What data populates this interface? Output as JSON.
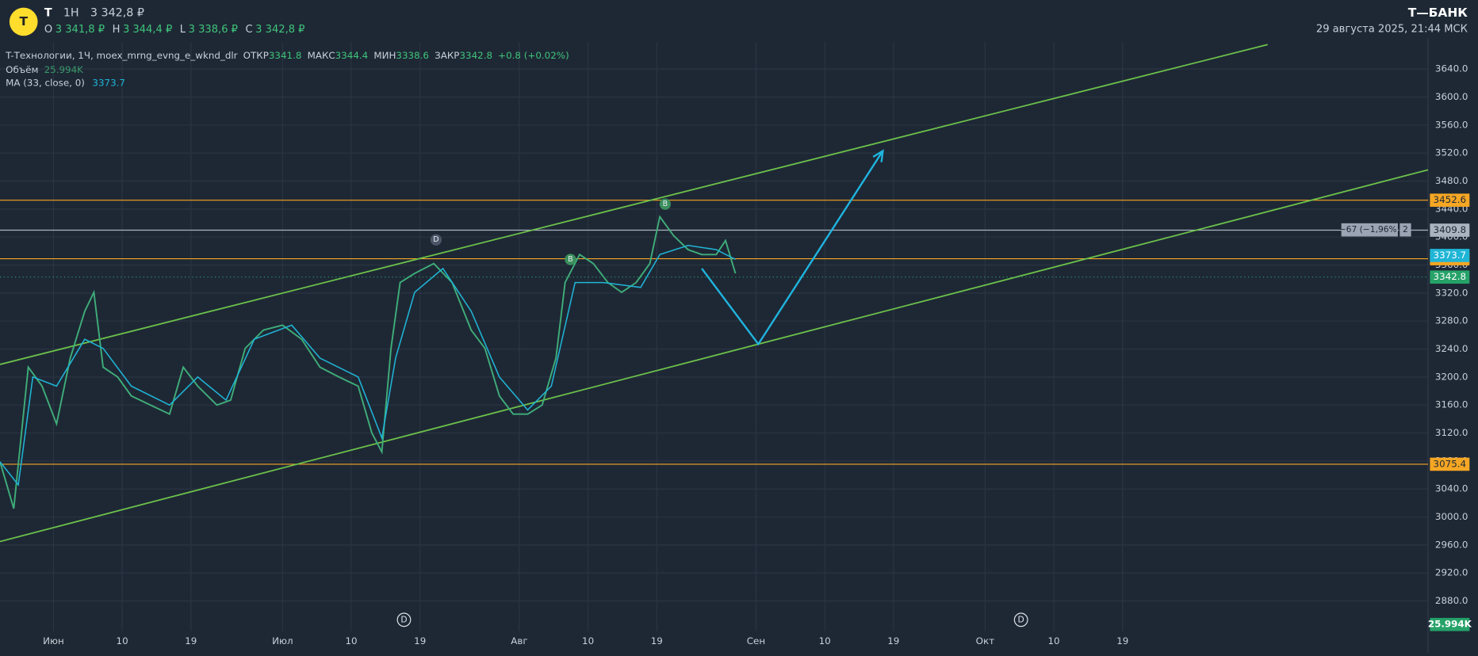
{
  "header": {
    "logo": "T",
    "ticker": "T",
    "interval": "1H",
    "price": "3 342,8 ₽",
    "o_label": "O",
    "o": "3 341,8 ₽",
    "h_label": "H",
    "h": "3 344,4 ₽",
    "l_label": "L",
    "l": "3 338,6 ₽",
    "c_label": "C",
    "c": "3 342,8 ₽",
    "brand": "Т—БАНК",
    "datetime": "29 августа 2025, 21:44 МСК"
  },
  "legend": {
    "instrument": "T-Технологии, 1Ч, moex_mrng_evng_e_wknd_dlr",
    "open_label": "ОТКР",
    "open": "3341.8",
    "high_label": "МАКС",
    "high": "3344.4",
    "low_label": "МИН",
    "low": "3338.6",
    "close_label": "ЗАКР",
    "close": "3342.8",
    "change": "+0.8 (+0.02%)",
    "volume_label": "Объём",
    "volume": "25.994K",
    "ma_value": "3373.7"
  },
  "measure": {
    "text": "−67 (−1,96%)",
    "count": "2"
  },
  "chart_data": {
    "type": "line",
    "xlim": [
      -7,
      180
    ],
    "ylim": [
      2837,
      3678
    ],
    "xticks": [
      {
        "value": 0,
        "label": "Июн"
      },
      {
        "value": 9,
        "label": "10"
      },
      {
        "value": 18,
        "label": "19"
      },
      {
        "value": 30,
        "label": "Июл"
      },
      {
        "value": 39,
        "label": "10"
      },
      {
        "value": 48,
        "label": "19"
      },
      {
        "value": 61,
        "label": "Авг"
      },
      {
        "value": 70,
        "label": "10"
      },
      {
        "value": 79,
        "label": "19"
      },
      {
        "value": 92,
        "label": "Сен"
      },
      {
        "value": 101,
        "label": "10"
      },
      {
        "value": 110,
        "label": "19"
      },
      {
        "value": 122,
        "label": "Окт"
      },
      {
        "value": 131,
        "label": "10"
      },
      {
        "value": 140,
        "label": "19"
      }
    ],
    "yticks": [
      {
        "value": 2880,
        "label": "2880.0"
      },
      {
        "value": 2920,
        "label": "2920.0"
      },
      {
        "value": 2960,
        "label": "2960.0"
      },
      {
        "value": 3000,
        "label": "3000.0"
      },
      {
        "value": 3040,
        "label": "3040.0"
      },
      {
        "value": 3080,
        "label": "3080.0"
      },
      {
        "value": 3120,
        "label": "3120.0"
      },
      {
        "value": 3160,
        "label": "3160.0"
      },
      {
        "value": 3200,
        "label": "3200.0"
      },
      {
        "value": 3240,
        "label": "3240.0"
      },
      {
        "value": 3280,
        "label": "3280.0"
      },
      {
        "value": 3320,
        "label": "3320.0"
      },
      {
        "value": 3360,
        "label": "3360.0"
      },
      {
        "value": 3400,
        "label": "3400.0"
      },
      {
        "value": 3440,
        "label": "3440.0"
      },
      {
        "value": 3480,
        "label": "3480.0"
      },
      {
        "value": 3520,
        "label": "3520.0"
      },
      {
        "value": 3560,
        "label": "3560.0"
      },
      {
        "value": 3600,
        "label": "3600.0"
      },
      {
        "value": 3640,
        "label": "3640.0"
      }
    ],
    "grid": true,
    "series": [
      {
        "color": "#3fae7a",
        "x": [
          -7,
          -5.2,
          -3.3,
          -1.5,
          0.4,
          2.2,
          4.1,
          5.3,
          6.5,
          8.4,
          10.2,
          12.7,
          15.2,
          17,
          18.9,
          21.4,
          23.2,
          25.1,
          27.5,
          30,
          32.5,
          34.9,
          37.4,
          39.9,
          41.7,
          43,
          44.2,
          45.4,
          47.3,
          49.8,
          52.2,
          54.7,
          56.5,
          58.4,
          60.2,
          62.1,
          64,
          65.8,
          67,
          68.9,
          70.7,
          72.6,
          74.4,
          76.3,
          78.1,
          79.4,
          81.2,
          83.1,
          84.9,
          86.8,
          88,
          89.3
        ],
        "values": [
          3079,
          3012,
          3214,
          3187,
          3133,
          3227,
          3294,
          3321,
          3214,
          3200,
          3173,
          3160,
          3147,
          3214,
          3187,
          3160,
          3167,
          3241,
          3267,
          3274,
          3254,
          3214,
          3200,
          3187,
          3120,
          3093,
          3241,
          3335,
          3348,
          3362,
          3335,
          3267,
          3241,
          3173,
          3147,
          3147,
          3160,
          3227,
          3335,
          3375,
          3362,
          3335,
          3321,
          3335,
          3362,
          3429,
          3402,
          3382,
          3375,
          3375,
          3395,
          3348
        ]
      },
      {
        "name": "MA (33, close, 0)",
        "color": "#1fb5d6",
        "x": [
          -7,
          -4.6,
          -2.7,
          0.4,
          4.1,
          6.5,
          10.2,
          15.2,
          18.9,
          22.6,
          26.3,
          31.2,
          34.9,
          39.9,
          43,
          44.8,
          47.3,
          51,
          54.7,
          58.4,
          62.1,
          65.2,
          68.3,
          72,
          76.9,
          79.4,
          83.1,
          86.8,
          89.3
        ],
        "values": [
          3079,
          3046,
          3200,
          3187,
          3254,
          3241,
          3187,
          3160,
          3200,
          3167,
          3254,
          3274,
          3227,
          3200,
          3113,
          3227,
          3321,
          3355,
          3294,
          3200,
          3153,
          3187,
          3335,
          3335,
          3328,
          3375,
          3388,
          3382,
          3368
        ]
      }
    ],
    "levels": [
      {
        "value": 3452.6,
        "color": "#f5a623"
      },
      {
        "value": 3409.8,
        "color": "#aab3c0"
      },
      {
        "value": 3369,
        "label": "3369.0",
        "color": "#f5a623"
      },
      {
        "value": 3075.4,
        "color": "#f5a623"
      }
    ],
    "badges": [
      {
        "value": 3373.7,
        "color": "#1fb5d6"
      },
      {
        "value": 3342.8,
        "color": "#26a269"
      }
    ],
    "trendlines": [
      {
        "color": "#6cc24a",
        "points": [
          [
            -7,
            3218
          ],
          [
            159,
            3675
          ]
        ]
      },
      {
        "color": "#6cc24a",
        "points": [
          [
            -7,
            2965
          ],
          [
            180,
            3496
          ]
        ]
      }
    ],
    "arrow": {
      "color": "#1fb5e0",
      "points": [
        [
          84.9,
          3355
        ],
        [
          92.3,
          3247
        ],
        [
          108.6,
          3523
        ]
      ]
    },
    "markers": [
      {
        "label": "D",
        "x": 50.1,
        "y": 3396,
        "color": "#4a5568"
      },
      {
        "label": "B",
        "x": 80.1,
        "y": 3447,
        "color": "#3a8f5c"
      },
      {
        "label": "B",
        "x": 67.7,
        "y": 3368,
        "color": "#3a8f5c"
      }
    ],
    "events": [
      {
        "label": "D",
        "x": 45.9
      },
      {
        "label": "D",
        "x": 126.7
      }
    ]
  }
}
